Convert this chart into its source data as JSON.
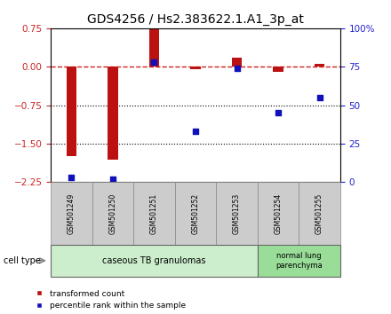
{
  "title": "GDS4256 / Hs2.383622.1.A1_3p_at",
  "samples": [
    "GSM501249",
    "GSM501250",
    "GSM501251",
    "GSM501252",
    "GSM501253",
    "GSM501254",
    "GSM501255"
  ],
  "transformed_count": [
    -1.75,
    -1.82,
    0.75,
    -0.05,
    0.18,
    -0.1,
    0.05
  ],
  "percentile_rank": [
    3,
    2,
    78,
    33,
    74,
    45,
    55
  ],
  "left_ylim": [
    -2.25,
    0.75
  ],
  "left_yticks": [
    0.75,
    0,
    -0.75,
    -1.5,
    -2.25
  ],
  "right_ylim": [
    0,
    100
  ],
  "right_yticks": [
    0,
    25,
    50,
    75,
    100
  ],
  "right_yticklabels": [
    "0",
    "25",
    "50",
    "75",
    "100%"
  ],
  "dotted_lines": [
    -0.75,
    -1.5
  ],
  "bar_color": "#bb1111",
  "dot_color": "#1111bb",
  "group1_label": "caseous TB granulomas",
  "group1_samples": [
    0,
    1,
    2,
    3,
    4
  ],
  "group2_label": "normal lung\nparenchyma",
  "group2_samples": [
    5,
    6
  ],
  "group1_bg": "#cceecc",
  "group2_bg": "#99dd99",
  "sample_box_bg": "#cccccc",
  "cell_type_label": "cell type",
  "legend_red": "transformed count",
  "legend_blue": "percentile rank within the sample",
  "title_fontsize": 10,
  "bar_width": 0.25
}
